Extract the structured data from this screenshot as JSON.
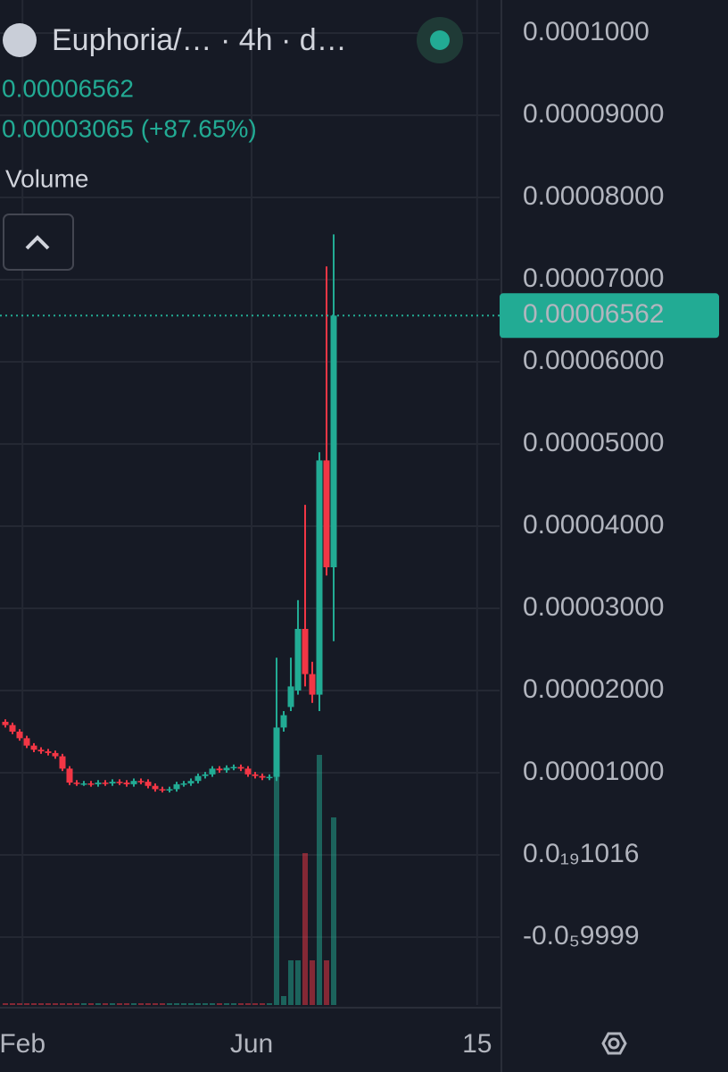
{
  "chart_data": {
    "type": "candlestick",
    "title": "Euphoria/…  · 4h · d…",
    "price_text": "0.00006562",
    "change_text": "0.00003065 (+87.65%)",
    "volume_label": "Volume",
    "up_color": "#22ab94",
    "down_color": "#f23645",
    "grid": true,
    "last_price": {
      "value": 6.562e-05,
      "label": "0.00006562"
    },
    "x": [
      0,
      1,
      2,
      3,
      4,
      5,
      6,
      7,
      8,
      9,
      10,
      11,
      12,
      13,
      14,
      15,
      16,
      17,
      18,
      19,
      20,
      21,
      22,
      23,
      24,
      25,
      26,
      27,
      28,
      29,
      30,
      31,
      32,
      33,
      34,
      35,
      36,
      37,
      38,
      39,
      40,
      41,
      42,
      43,
      44,
      45,
      46
    ],
    "open": [
      1.62e-05,
      1.58e-05,
      1.5e-05,
      1.42e-05,
      1.33e-05,
      1.28e-05,
      1.26e-05,
      1.24e-05,
      1.2e-05,
      1.05e-05,
      8.8e-06,
      8.7e-06,
      8.7e-06,
      8.6e-06,
      8.8e-06,
      8.7e-06,
      8.9e-06,
      8.8e-06,
      8.6e-06,
      9e-06,
      8.9e-06,
      8.4e-06,
      8e-06,
      7.9e-06,
      8e-06,
      8.6e-06,
      8.7e-06,
      9e-06,
      9.6e-06,
      9.8e-06,
      1.05e-05,
      1.03e-05,
      1.06e-05,
      1.07e-05,
      1.05e-05,
      9.8e-06,
      9.6e-06,
      9.4e-06,
      9.5e-06,
      1.55e-05,
      1.8e-05,
      2e-05,
      2.75e-05,
      2.2e-05,
      1.95e-05,
      4.8e-05,
      3.5e-05
    ],
    "high": [
      1.65e-05,
      1.61e-05,
      1.53e-05,
      1.45e-05,
      1.36e-05,
      1.31e-05,
      1.29e-05,
      1.27e-05,
      1.23e-05,
      1.08e-05,
      9.1e-06,
      9e-06,
      9e-06,
      9.1e-06,
      9.1e-06,
      9.2e-06,
      9.2e-06,
      9.1e-06,
      9.3e-06,
      9.3e-06,
      9.2e-06,
      8.7e-06,
      8.3e-06,
      8.3e-06,
      8.9e-06,
      9e-06,
      9.3e-06,
      9.9e-06,
      1.01e-05,
      1.08e-05,
      1.08e-05,
      1.09e-05,
      1.1e-05,
      1.1e-05,
      1.08e-05,
      1.01e-05,
      9.9e-06,
      9.8e-06,
      2.4e-05,
      1.75e-05,
      2.4e-05,
      3.1e-05,
      4.26e-05,
      2.35e-05,
      4.9e-05,
      7.16e-05,
      7.55e-05
    ],
    "low": [
      1.55e-05,
      1.47e-05,
      1.39e-05,
      1.3e-05,
      1.25e-05,
      1.23e-05,
      1.21e-05,
      1.17e-05,
      1.02e-05,
      8.5e-06,
      8.4e-06,
      8.4e-06,
      8.3e-06,
      8.3e-06,
      8.4e-06,
      8.4e-06,
      8.5e-06,
      8.3e-06,
      8.3e-06,
      8.6e-06,
      8.1e-06,
      7.7e-06,
      7.6e-06,
      7.6e-06,
      7.7e-06,
      8.3e-06,
      8.4e-06,
      8.7e-06,
      9.3e-06,
      9.5e-06,
      1e-05,
      1e-05,
      1.03e-05,
      1.02e-05,
      9.5e-06,
      9.3e-06,
      9.1e-06,
      9.1e-06,
      9e-06,
      1.5e-05,
      1.75e-05,
      1.95e-05,
      2.05e-05,
      1.85e-05,
      1.75e-05,
      3.4e-05,
      2.6e-05
    ],
    "close": [
      1.58e-05,
      1.5e-05,
      1.42e-05,
      1.33e-05,
      1.28e-05,
      1.26e-05,
      1.24e-05,
      1.2e-05,
      1.05e-05,
      8.8e-06,
      8.7e-06,
      8.7e-06,
      8.6e-06,
      8.8e-06,
      8.7e-06,
      8.9e-06,
      8.8e-06,
      8.6e-06,
      9e-06,
      8.9e-06,
      8.4e-06,
      8e-06,
      7.9e-06,
      8e-06,
      8.6e-06,
      8.7e-06,
      9e-06,
      9.6e-06,
      9.8e-06,
      1.05e-05,
      1.03e-05,
      1.06e-05,
      1.07e-05,
      1.05e-05,
      9.8e-06,
      9.6e-06,
      9.4e-06,
      9.5e-06,
      1.55e-05,
      1.7e-05,
      2.05e-05,
      2.75e-05,
      2.2e-05,
      1.95e-05,
      4.8e-05,
      3.5e-05,
      6.562e-05
    ],
    "volume": [
      0.2,
      0.2,
      0.2,
      0.2,
      0.2,
      0.2,
      0.2,
      0.2,
      0.2,
      0.2,
      0.2,
      0.2,
      0.2,
      0.2,
      0.2,
      0.2,
      0.2,
      0.2,
      0.2,
      0.2,
      0.2,
      0.2,
      0.2,
      0.2,
      0.2,
      0.2,
      0.2,
      0.2,
      0.2,
      0.2,
      0.2,
      0.2,
      0.2,
      0.2,
      0.2,
      0.2,
      0.2,
      0.2,
      28,
      1,
      5,
      5,
      17,
      5,
      28,
      5,
      21
    ],
    "xlim": [
      -0.75,
      69.25
    ],
    "xticks": [
      {
        "value": 2.4,
        "label": "Feb"
      },
      {
        "value": 34.5,
        "label": "Jun"
      },
      {
        "value": 66.1,
        "label": "15"
      }
    ],
    "ylim": [
      -1.826e-05,
      0.00010402
    ],
    "yticks": [
      {
        "value": 0.0001,
        "label": "0.0001000"
      },
      {
        "value": 9e-05,
        "label": "0.00009000"
      },
      {
        "value": 8e-05,
        "label": "0.00008000"
      },
      {
        "value": 7e-05,
        "label": "0.00007000"
      },
      {
        "value": 6e-05,
        "label": "0.00006000"
      },
      {
        "value": 5e-05,
        "label": "0.00005000"
      },
      {
        "value": 4e-05,
        "label": "0.00004000"
      },
      {
        "value": 3e-05,
        "label": "0.00003000"
      },
      {
        "value": 2e-05,
        "label": "0.00002000"
      },
      {
        "value": 1e-05,
        "label": "0.00001000"
      },
      {
        "value": 1.016e-20,
        "label": "0.0₁₉1016"
      },
      {
        "value": -9.999e-06,
        "label": "-0.0₅9999"
      }
    ]
  }
}
